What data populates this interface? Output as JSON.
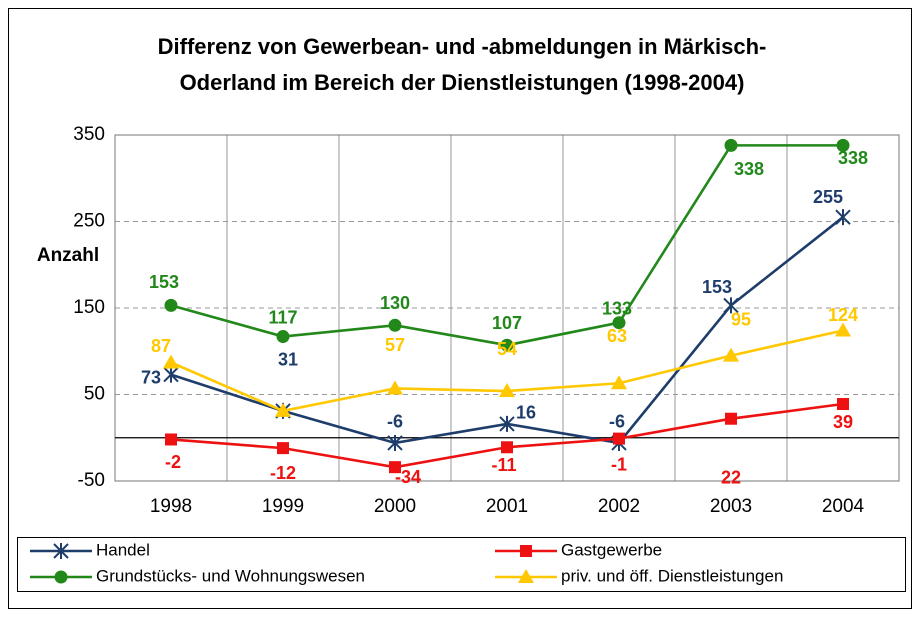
{
  "chart_data": {
    "type": "line",
    "title": [
      "Differenz von Gewerbean- und -abmeldungen in Märkisch-",
      "Oderland im Bereich der Dienstleistungen (1998-2004)"
    ],
    "y_label": "Anzahl",
    "categories": [
      "1998",
      "1999",
      "2000",
      "2001",
      "2002",
      "2003",
      "2004"
    ],
    "series": [
      {
        "name": "Handel",
        "color": "#1f3d6b",
        "marker": "star",
        "values": [
          73,
          31,
          -6,
          16,
          -6,
          153,
          255
        ]
      },
      {
        "name": "Gastgewerbe",
        "color": "#ee1111",
        "marker": "square",
        "values": [
          -2,
          -12,
          -34,
          -11,
          -1,
          22,
          39
        ]
      },
      {
        "name": "Grundstücks- und Wohnungswesen",
        "color": "#22881a",
        "marker": "circle",
        "values": [
          153,
          117,
          130,
          107,
          133,
          338,
          338
        ]
      },
      {
        "name": "priv. und öff. Dienstleistungen",
        "color": "#ffc800",
        "marker": "triangle",
        "values": [
          87,
          31,
          57,
          54,
          63,
          95,
          124
        ],
        "value_labels": [
          87,
          null,
          57,
          54,
          63,
          95,
          124
        ]
      }
    ],
    "ylim": [
      -50,
      350
    ],
    "yticks": [
      -50,
      50,
      150,
      250,
      350
    ],
    "grid": true
  }
}
